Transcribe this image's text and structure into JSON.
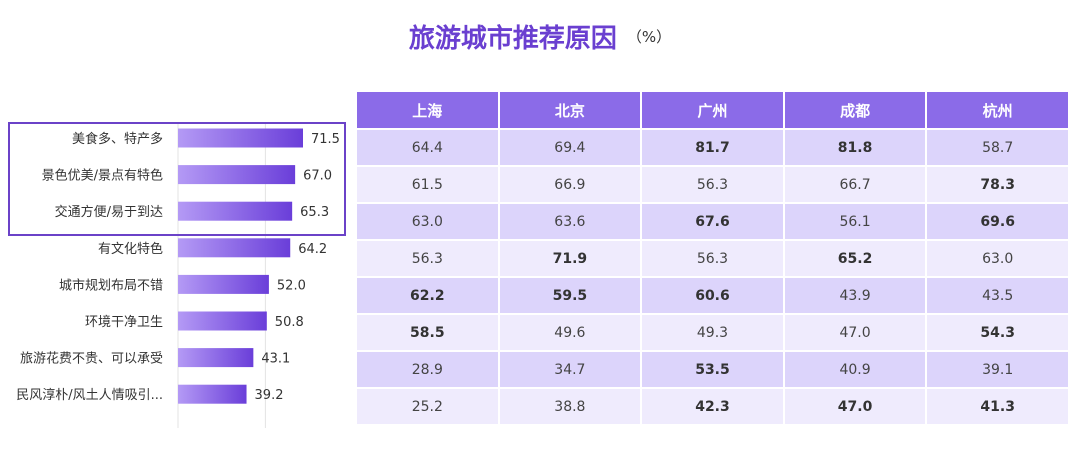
{
  "title": "旅游城市推荐原因",
  "unit": "（%）",
  "colors": {
    "accent": "#6a3fd0",
    "bar_start": "#b49af5",
    "bar_end": "#6a3ed9",
    "header": "#8b6be8",
    "row_dark": "#dcd4fb",
    "row_light": "#efebfd"
  },
  "chart_data": [
    {
      "type": "bar",
      "orientation": "horizontal",
      "categories": [
        "美食多、特产多",
        "景色优美/景点有特色",
        "交通方便/易于到达",
        "有文化特色",
        "城市规划布局不错",
        "环境干净卫生",
        "旅游花费不贵、可以承受",
        "民风淳朴/风土人情吸引..."
      ],
      "values": [
        71.5,
        67.0,
        65.3,
        64.2,
        52.0,
        50.8,
        43.1,
        39.2
      ],
      "value_labels": [
        "71.5",
        "67.0",
        "65.3",
        "64.2",
        "52.0",
        "50.8",
        "43.1",
        "39.2"
      ],
      "highlighted_categories": [
        "美食多、特产多",
        "景色优美/景点有特色",
        "交通方便/易于到达"
      ]
    },
    {
      "type": "table",
      "columns": [
        "上海",
        "北京",
        "广州",
        "成都",
        "杭州"
      ],
      "rows": [
        [
          "64.4",
          "69.4",
          "81.7",
          "81.8",
          "58.7"
        ],
        [
          "61.5",
          "66.9",
          "56.3",
          "66.7",
          "78.3"
        ],
        [
          "63.0",
          "63.6",
          "67.6",
          "56.1",
          "69.6"
        ],
        [
          "56.3",
          "71.9",
          "56.3",
          "65.2",
          "63.0"
        ],
        [
          "62.2",
          "59.5",
          "60.6",
          "43.9",
          "43.5"
        ],
        [
          "58.5",
          "49.6",
          "49.3",
          "47.0",
          "54.3"
        ],
        [
          "28.9",
          "34.7",
          "53.5",
          "40.9",
          "39.1"
        ],
        [
          "25.2",
          "38.8",
          "42.3",
          "47.0",
          "41.3"
        ]
      ],
      "bold": [
        [
          false,
          false,
          true,
          true,
          false
        ],
        [
          false,
          false,
          false,
          false,
          true
        ],
        [
          false,
          false,
          true,
          false,
          true
        ],
        [
          false,
          true,
          false,
          true,
          false
        ],
        [
          true,
          true,
          true,
          false,
          false
        ],
        [
          true,
          false,
          false,
          false,
          true
        ],
        [
          false,
          false,
          true,
          false,
          false
        ],
        [
          false,
          false,
          true,
          true,
          true
        ]
      ]
    }
  ]
}
